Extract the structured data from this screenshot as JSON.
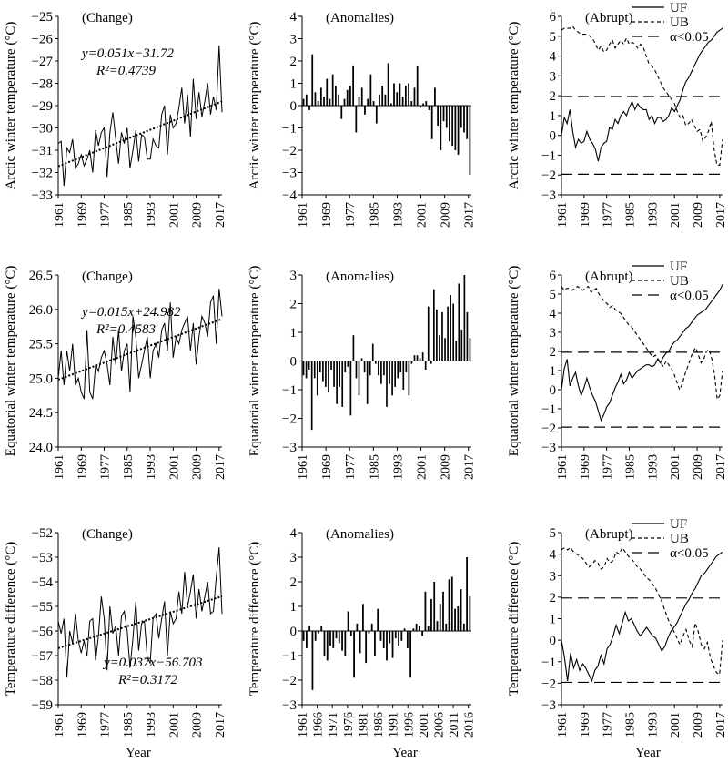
{
  "xlabel_shared": "Year",
  "chart_data": [
    {
      "type": "line",
      "row": 0,
      "col": 0,
      "title": "(Change)",
      "ylabel": "Arctic winter temperature (°C)",
      "xlim": [
        1961,
        2018
      ],
      "ylim": [
        -33,
        -25
      ],
      "yticks": [
        -33,
        -32,
        -31,
        -30,
        -29,
        -28,
        -27,
        -26,
        -25
      ],
      "xticks": [
        1961,
        1969,
        1977,
        1985,
        1993,
        2001,
        2009,
        2017
      ],
      "equation": "y=0.051x−31.72",
      "r2": "R²=0.4739",
      "trend": {
        "x": [
          1961,
          2018
        ],
        "y": [
          -31.72,
          -28.81
        ]
      },
      "x_start": 1961,
      "y": [
        -30.7,
        -30.6,
        -32.6,
        -30.9,
        -31.1,
        -30.5,
        -31.8,
        -31.6,
        -31.2,
        -31.7,
        -31.4,
        -31.0,
        -32.0,
        -30.1,
        -30.8,
        -30.2,
        -30.0,
        -32.2,
        -30.2,
        -29.3,
        -30.5,
        -31.6,
        -30.2,
        -30.7,
        -30.0,
        -31.8,
        -31.0,
        -30.1,
        -31.5,
        -30.3,
        -30.4,
        -31.4,
        -31.4,
        -30.5,
        -30.8,
        -30.9,
        -29.4,
        -29.0,
        -31.2,
        -29.4,
        -30.0,
        -29.8,
        -29.1,
        -28.2,
        -29.8,
        -28.5,
        -30.4,
        -27.8,
        -29.6,
        -28.4,
        -29.5,
        -28.8,
        -28.0,
        -29.4,
        -28.6,
        -29.2,
        -26.3,
        -29.3
      ]
    },
    {
      "type": "bar",
      "row": 0,
      "col": 1,
      "title": "(Anomalies)",
      "ylabel": "Arctic winter temperature (°C)",
      "xlim": [
        1961,
        2018
      ],
      "ylim": [
        -4,
        4
      ],
      "yticks": [
        -4,
        -3,
        -2,
        -1,
        0,
        1,
        2,
        3,
        4
      ],
      "xticks": [
        1961,
        1969,
        1977,
        1985,
        1993,
        2001,
        2009,
        2017
      ],
      "x_start": 1961,
      "values": [
        0.3,
        0.5,
        -0.2,
        2.3,
        0.6,
        0.2,
        0.8,
        0.4,
        1.2,
        0.3,
        1.4,
        0.9,
        0.5,
        -0.6,
        0.3,
        0.7,
        0.9,
        1.8,
        -1.2,
        0.4,
        0.8,
        -0.4,
        0.3,
        1.4,
        0.2,
        -0.8,
        0.5,
        0.9,
        0.5,
        1.9,
        0.1,
        1.0,
        0.6,
        1.0,
        0.4,
        0.9,
        1.0,
        0.2,
        0.8,
        1.8,
        -0.1,
        0.1,
        0.2,
        -0.2,
        -1.5,
        0.8,
        -0.9,
        -2.0,
        -0.7,
        -1.0,
        -1.6,
        -1.8,
        -2.0,
        -2.2,
        -1.0,
        -1.2,
        -1.5,
        -3.1
      ]
    },
    {
      "type": "line",
      "row": 0,
      "col": 2,
      "title": "(Abrupt)",
      "ylabel": "Arctic winter temperature (°C)",
      "xlim": [
        1961,
        2018
      ],
      "ylim": [
        -3,
        6
      ],
      "yticks": [
        -3,
        -2,
        -1,
        0,
        1,
        2,
        3,
        4,
        5,
        6
      ],
      "xticks": [
        1961,
        1969,
        1977,
        1985,
        1993,
        2001,
        2009,
        2017
      ],
      "legend": [
        "UF",
        "UB",
        "α<0.05"
      ],
      "threshold": 1.96,
      "x_start": 1961,
      "UF": [
        0.0,
        0.9,
        0.6,
        1.3,
        0.2,
        -0.6,
        -0.2,
        -0.4,
        -0.3,
        0.2,
        -0.2,
        -0.4,
        -0.7,
        -1.3,
        -0.6,
        -0.4,
        -0.3,
        0.4,
        0.3,
        0.8,
        0.6,
        1.0,
        1.2,
        1.0,
        1.4,
        1.7,
        1.3,
        1.6,
        1.4,
        1.3,
        1.3,
        0.8,
        1.0,
        0.6,
        0.9,
        0.9,
        0.7,
        0.8,
        1.0,
        1.4,
        1.2,
        1.5,
        1.8,
        2.3,
        2.7,
        2.9,
        3.2,
        3.5,
        3.8,
        4.1,
        4.3,
        4.5,
        4.7,
        4.8,
        5.0,
        5.2,
        5.3,
        5.4
      ],
      "UB": [
        5.3,
        5.4,
        5.4,
        5.4,
        5.5,
        5.3,
        5.2,
        5.1,
        5.1,
        5.1,
        5.0,
        4.9,
        4.6,
        4.3,
        4.5,
        4.2,
        4.3,
        4.6,
        4.8,
        4.4,
        4.6,
        4.8,
        4.6,
        4.9,
        4.6,
        4.7,
        4.6,
        4.4,
        4.6,
        4.4,
        4.0,
        3.6,
        3.5,
        3.3,
        3.0,
        2.7,
        2.4,
        2.2,
        2.0,
        1.8,
        1.6,
        1.2,
        0.9,
        1.0,
        0.5,
        0.6,
        0.8,
        0.5,
        0.2,
        0.3,
        -0.3,
        -0.1,
        0.2,
        0.7,
        -0.7,
        -1.5,
        -1.5,
        -0.2
      ]
    },
    {
      "type": "line",
      "row": 1,
      "col": 0,
      "title": "(Change)",
      "ylabel": "Equatorial winter temperature (°C)",
      "xlim": [
        1961,
        2018
      ],
      "ylim": [
        24.0,
        26.5
      ],
      "yticks": [
        24.0,
        24.5,
        25.0,
        25.5,
        26.0,
        26.5
      ],
      "xticks": [
        1961,
        1969,
        1977,
        1985,
        1993,
        2001,
        2009,
        2017
      ],
      "equation": "y=0.015x+24.982",
      "r2": "R²=0.4583",
      "trend": {
        "x": [
          1961,
          2018
        ],
        "y": [
          24.98,
          25.86
        ]
      },
      "x_start": 1961,
      "y": [
        25.0,
        25.4,
        24.9,
        25.4,
        25.1,
        25.5,
        24.9,
        25.0,
        24.8,
        24.7,
        25.7,
        24.8,
        24.7,
        25.2,
        25.1,
        25.3,
        25.4,
        25.2,
        24.9,
        25.6,
        25.2,
        25.7,
        25.1,
        25.4,
        25.5,
        24.8,
        25.9,
        25.6,
        25.0,
        25.2,
        25.4,
        25.6,
        25.0,
        25.4,
        25.5,
        25.3,
        25.7,
        25.8,
        25.4,
        26.1,
        25.3,
        25.6,
        25.5,
        25.7,
        25.8,
        25.9,
        25.4,
        25.8,
        25.2,
        25.6,
        25.9,
        25.8,
        25.6,
        26.1,
        26.2,
        25.5,
        26.3,
        25.9
      ]
    },
    {
      "type": "bar",
      "row": 1,
      "col": 1,
      "title": "(Anomalies)",
      "ylabel": "Equatorial winter temperature (°C)",
      "xlim": [
        1961,
        2018
      ],
      "ylim": [
        -3,
        3
      ],
      "yticks": [
        -3,
        -2,
        -1,
        0,
        1,
        2,
        3
      ],
      "xticks": [
        1961,
        1969,
        1977,
        1985,
        1993,
        2001,
        2009,
        2017
      ],
      "x_start": 1961,
      "values": [
        -0.5,
        -0.6,
        -0.3,
        -2.4,
        -0.6,
        -1.2,
        -0.4,
        -0.7,
        -0.9,
        -1.1,
        -0.3,
        -0.9,
        -1.5,
        -0.9,
        -1.6,
        -0.4,
        -0.2,
        -1.9,
        0.9,
        -0.6,
        -1.2,
        0.1,
        -0.4,
        -1.5,
        -0.5,
        0.6,
        -0.1,
        -0.5,
        -0.8,
        -0.5,
        -1.6,
        -0.8,
        -1.2,
        -0.9,
        -0.6,
        -0.4,
        -1.0,
        -0.4,
        -1.2,
        -0.1,
        0.2,
        0.2,
        0.1,
        0.3,
        -0.3,
        1.9,
        -0.1,
        2.5,
        1.8,
        0.9,
        1.7,
        0.8,
        1.9,
        2.3,
        2.0,
        0.7,
        2.7,
        1.1,
        3.0,
        1.7,
        0.8
      ]
    },
    {
      "type": "line",
      "row": 1,
      "col": 2,
      "title": "(Abrupt)",
      "ylabel": "Equatorial winter temperature (°C)",
      "xlim": [
        1961,
        2018
      ],
      "ylim": [
        -3,
        6
      ],
      "yticks": [
        -3,
        -2,
        -1,
        0,
        1,
        2,
        3,
        4,
        5,
        6
      ],
      "xticks": [
        1961,
        1969,
        1977,
        1985,
        1993,
        2001,
        2009,
        2017
      ],
      "legend": [
        "UF",
        "UB",
        "α<0.05"
      ],
      "threshold": 1.96,
      "x_start": 1961,
      "UF": [
        0.0,
        1.1,
        1.6,
        0.2,
        0.6,
        0.9,
        0.2,
        -0.3,
        0.1,
        0.6,
        0.1,
        -0.3,
        -0.6,
        -1.1,
        -1.6,
        -1.3,
        -0.9,
        -0.7,
        -0.3,
        0.1,
        0.4,
        0.8,
        0.3,
        0.5,
        0.9,
        0.6,
        0.8,
        1.0,
        1.1,
        1.2,
        1.3,
        1.3,
        1.2,
        1.3,
        1.6,
        1.4,
        1.7,
        1.9,
        2.0,
        2.3,
        2.5,
        2.6,
        2.8,
        3.0,
        3.2,
        3.3,
        3.5,
        3.7,
        3.9,
        4.0,
        4.1,
        4.2,
        4.4,
        4.6,
        4.8,
        5.0,
        5.2,
        5.5
      ],
      "UB": [
        5.4,
        5.2,
        5.3,
        5.3,
        5.2,
        5.3,
        5.4,
        5.3,
        5.2,
        5.3,
        5.4,
        5.1,
        5.2,
        5.3,
        5.0,
        4.8,
        4.6,
        4.5,
        4.3,
        4.4,
        4.2,
        4.1,
        4.0,
        3.8,
        3.6,
        3.4,
        3.3,
        3.1,
        2.9,
        2.7,
        2.5,
        2.3,
        2.1,
        1.9,
        1.7,
        1.8,
        1.6,
        1.4,
        1.2,
        1.5,
        1.3,
        1.1,
        0.8,
        0.4,
        0.0,
        0.3,
        0.8,
        1.2,
        1.6,
        2.0,
        2.2,
        1.8,
        1.4,
        1.6,
        2.0,
        2.1,
        1.6,
        0.8,
        -0.5,
        -0.3,
        1.0
      ]
    },
    {
      "type": "line",
      "row": 2,
      "col": 0,
      "title": "(Change)",
      "ylabel": "Temperature difference (°C)",
      "xlim": [
        1961,
        2018
      ],
      "ylim": [
        -59,
        -52
      ],
      "yticks": [
        -59,
        -58,
        -57,
        -56,
        -55,
        -54,
        -53,
        -52
      ],
      "xticks": [
        1961,
        1969,
        1977,
        1985,
        1993,
        2001,
        2009,
        2017
      ],
      "equation": "y=0.037x−56.703",
      "r2": "R²=0.3172",
      "trend": {
        "x": [
          1961,
          2018
        ],
        "y": [
          -56.7,
          -54.59
        ]
      },
      "x_start": 1961,
      "y": [
        -55.6,
        -56.1,
        -55.5,
        -57.9,
        -56.0,
        -56.5,
        -55.3,
        -56.4,
        -56.9,
        -56.4,
        -57.0,
        -55.6,
        -55.5,
        -57.2,
        -56.2,
        -54.6,
        -55.5,
        -57.6,
        -55.0,
        -56.1,
        -55.8,
        -57.0,
        -55.4,
        -55.2,
        -56.0,
        -57.5,
        -56.3,
        -54.8,
        -56.8,
        -55.7,
        -55.6,
        -57.1,
        -57.3,
        -55.5,
        -55.3,
        -56.3,
        -55.5,
        -54.8,
        -57.0,
        -55.2,
        -55.7,
        -55.5,
        -54.4,
        -55.3,
        -53.6,
        -55.0,
        -54.4,
        -53.7,
        -55.5,
        -54.3,
        -55.2,
        -54.6,
        -54.0,
        -55.3,
        -55.2,
        -53.8,
        -52.6,
        -55.3
      ]
    },
    {
      "type": "bar",
      "row": 2,
      "col": 1,
      "title": "(Anomalies)",
      "ylabel": "Temperature difference (°C)",
      "xlim": [
        1961,
        2017
      ],
      "ylim": [
        -3,
        4
      ],
      "yticks": [
        -3,
        -2,
        -1,
        0,
        1,
        2,
        3,
        4
      ],
      "xticks": [
        1961,
        1966,
        1971,
        1976,
        1981,
        1986,
        1991,
        1996,
        2001,
        2006,
        2011,
        2016
      ],
      "x_start": 1961,
      "values": [
        -0.4,
        -0.7,
        0.2,
        -2.4,
        -0.4,
        -0.1,
        0.2,
        -1.0,
        -1.2,
        -0.6,
        -0.7,
        -0.3,
        -0.5,
        -0.8,
        -1.0,
        0.8,
        -0.2,
        -1.9,
        0.3,
        -0.9,
        1.1,
        -1.3,
        -0.1,
        0.3,
        -1.0,
        0.9,
        -0.4,
        -0.7,
        -1.2,
        -0.5,
        -1.1,
        -0.3,
        -0.6,
        -0.4,
        0.1,
        -0.7,
        -1.9,
        0.1,
        0.3,
        0.2,
        -0.2,
        1.6,
        0.2,
        1.3,
        2.0,
        0.4,
        1.1,
        1.6,
        0.3,
        2.1,
        2.2,
        0.9,
        1.0,
        1.7,
        0.3,
        3.0,
        1.4
      ]
    },
    {
      "type": "line",
      "row": 2,
      "col": 2,
      "title": "(Abrupt)",
      "ylabel": "Temperature difference (°C)",
      "xlim": [
        1961,
        2018
      ],
      "ylim": [
        -3,
        5
      ],
      "yticks": [
        -3,
        -2,
        -1,
        0,
        1,
        2,
        3,
        4,
        5
      ],
      "xticks": [
        1961,
        1969,
        1977,
        1985,
        1993,
        2001,
        2009,
        2017
      ],
      "legend": [
        "UF",
        "UB",
        "α<0.05"
      ],
      "threshold": 1.96,
      "x_start": 1961,
      "UF": [
        0.0,
        -0.8,
        -1.9,
        -0.6,
        -1.3,
        -0.9,
        -1.4,
        -1.1,
        -1.3,
        -1.6,
        -1.9,
        -1.4,
        -1.2,
        -0.7,
        -1.1,
        -0.4,
        -0.2,
        0.2,
        0.7,
        0.3,
        0.8,
        1.3,
        0.9,
        1.0,
        0.7,
        0.4,
        0.2,
        0.4,
        0.6,
        0.4,
        0.2,
        0.1,
        -0.2,
        -0.5,
        -0.3,
        0.1,
        0.4,
        0.6,
        0.8,
        1.1,
        1.4,
        1.7,
        1.9,
        2.2,
        2.4,
        2.7,
        3.0,
        3.1,
        3.3,
        3.5,
        3.7,
        3.9,
        4.0,
        4.1
      ],
      "UB": [
        4.2,
        4.3,
        4.2,
        4.3,
        4.1,
        4.0,
        3.9,
        3.8,
        3.6,
        3.4,
        3.5,
        3.7,
        3.6,
        3.3,
        3.4,
        3.8,
        3.6,
        3.7,
        4.1,
        4.0,
        4.3,
        4.1,
        3.9,
        3.8,
        3.6,
        3.4,
        3.3,
        3.1,
        2.9,
        2.8,
        2.6,
        2.4,
        2.1,
        1.8,
        1.4,
        1.0,
        0.7,
        0.4,
        0.1,
        -0.2,
        0.2,
        0.5,
        0.0,
        -0.3,
        0.8,
        0.4,
        -0.2,
        -0.4,
        -0.1,
        -0.8,
        -1.2,
        -1.5,
        -1.6,
        0.0
      ]
    }
  ]
}
